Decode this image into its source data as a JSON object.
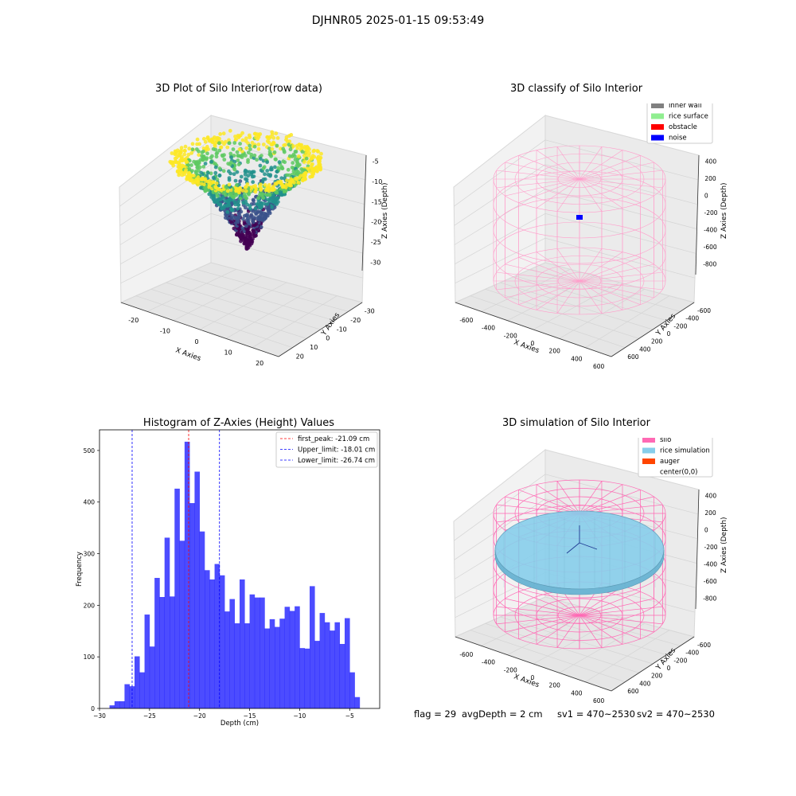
{
  "figure": {
    "suptitle": "DJHNR05 2025-01-15 09:53:49"
  },
  "panels": {
    "raw": {
      "title": "3D Plot of Silo Interior(row data)",
      "xlabel": "X Axies",
      "ylabel": "Y Axies",
      "zlabel": "Z Axies (Depth)",
      "xticks": [
        "-20",
        "-10",
        "0",
        "10",
        "20"
      ],
      "yticks": [
        "-30",
        "-20",
        "-10",
        "0",
        "10",
        "20"
      ],
      "zticks": [
        "-5",
        "-10",
        "-15",
        "-20",
        "-25",
        "-30"
      ],
      "colormap": [
        "#440154",
        "#3b528b",
        "#21918c",
        "#5ec962",
        "#fde725"
      ]
    },
    "classify": {
      "title": "3D classify of Silo Interior",
      "xlabel": "X Axies",
      "ylabel": "Y Axies",
      "zlabel": "Z Axies (Depth)",
      "xticks": [
        "-600",
        "-400",
        "-200",
        "0",
        "200",
        "400",
        "600"
      ],
      "yticks": [
        "-600",
        "-400",
        "-200",
        "0",
        "200",
        "400",
        "600"
      ],
      "zticks": [
        "400",
        "200",
        "0",
        "-200",
        "-400",
        "-600",
        "-800"
      ],
      "legend": [
        {
          "label": "inner wall",
          "color": "#808080"
        },
        {
          "label": "rice surface",
          "color": "#90ee90"
        },
        {
          "label": "obstacle",
          "color": "#ff0000"
        },
        {
          "label": "noise",
          "color": "#0000ff"
        }
      ]
    },
    "simulation": {
      "title": "3D simulation of Silo Interior",
      "xlabel": "X Axies",
      "ylabel": "Y Axies",
      "zlabel": "Z Axies (Depth)",
      "xticks": [
        "-600",
        "-400",
        "-200",
        "0",
        "200",
        "400",
        "600"
      ],
      "yticks": [
        "-600",
        "-400",
        "-200",
        "0",
        "200",
        "400",
        "600"
      ],
      "zticks": [
        "400",
        "200",
        "0",
        "-200",
        "-400",
        "-600",
        "-800"
      ],
      "legend": [
        {
          "label": "silo",
          "color": "#ff69b4"
        },
        {
          "label": "rice simulation",
          "color": "#87ceeb"
        },
        {
          "label": "auger",
          "color": "#ff4500"
        },
        {
          "label": "center(0,0)",
          "color": ""
        }
      ]
    }
  },
  "chart_data": {
    "type": "bar",
    "title": "Histogram of Z-Axies (Height) Values",
    "xlabel": "Depth (cm)",
    "ylabel": "Frequency",
    "bar_color": "#0000ff",
    "xlim": [
      -30,
      -2
    ],
    "ylim": [
      0,
      540
    ],
    "xticks": [
      -30,
      -25,
      -20,
      -15,
      -10,
      -5
    ],
    "yticks": [
      0,
      100,
      200,
      300,
      400,
      500
    ],
    "bin_start": -29.0,
    "bin_width": 0.5,
    "values": [
      6,
      14,
      14,
      47,
      43,
      101,
      70,
      182,
      120,
      253,
      216,
      331,
      217,
      426,
      325,
      517,
      398,
      459,
      343,
      268,
      250,
      280,
      258,
      188,
      212,
      165,
      250,
      165,
      221,
      215,
      215,
      155,
      173,
      158,
      174,
      197,
      189,
      198,
      117,
      116,
      237,
      131,
      185,
      167,
      151,
      167,
      125,
      175,
      70,
      22
    ],
    "vlines": [
      {
        "label": "first_peak: -21.09 cm",
        "x": -21.09,
        "color": "#ff0000"
      },
      {
        "label": "Upper_limit: -18.01 cm",
        "x": -18.01,
        "color": "#0000ff"
      },
      {
        "label": "Lower_limit: -26.74 cm",
        "x": -26.74,
        "color": "#0000ff"
      }
    ],
    "legend_position": "upper right"
  },
  "status": {
    "flag": "flag = 29",
    "avg_depth": "avgDepth = 2 cm",
    "sv1": "sv1 = 470~2530",
    "sv2": "sv2 = 470~2530"
  }
}
